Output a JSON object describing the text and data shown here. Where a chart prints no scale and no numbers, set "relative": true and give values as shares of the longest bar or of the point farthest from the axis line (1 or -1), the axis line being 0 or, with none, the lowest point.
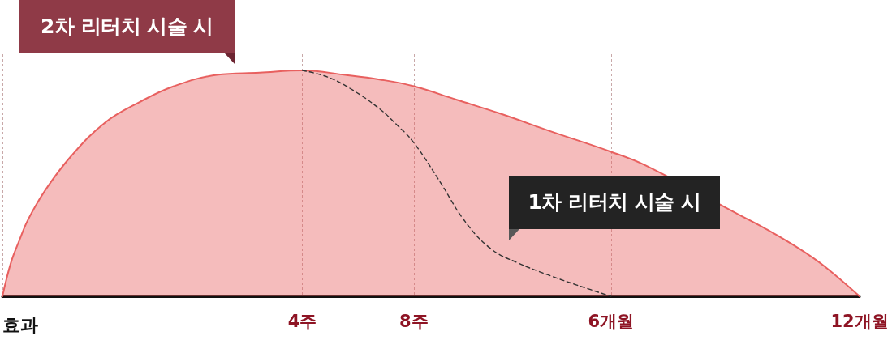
{
  "chart_data": {
    "type": "area",
    "relative": true,
    "grid": "x",
    "xlabel": "효과",
    "categories": [
      null,
      null,
      null,
      null,
      null,
      null,
      null,
      null,
      null,
      null,
      null,
      null,
      null,
      null,
      null,
      null,
      null,
      null,
      null,
      null,
      null,
      null,
      null,
      null,
      null,
      null,
      null,
      null,
      null,
      null,
      null,
      null,
      null,
      null,
      null,
      "4주",
      null,
      null,
      null,
      null,
      null,
      null,
      null,
      null,
      null,
      null,
      null,
      null,
      "8주",
      null,
      null,
      null,
      null,
      null,
      null,
      null,
      null,
      null,
      null,
      null,
      null,
      null,
      null,
      null,
      null,
      null,
      null,
      null,
      null,
      null,
      null,
      "6개월",
      null,
      null,
      null,
      null,
      null,
      null,
      null,
      null,
      null,
      null,
      null,
      null,
      null,
      null,
      null,
      null,
      null,
      null,
      null,
      null,
      null,
      null,
      null,
      null,
      null,
      null,
      null,
      null,
      "12개월"
    ],
    "series": [
      {
        "name": "2차 리터치 시술 시",
        "color": "#e8605f",
        "values": [
          0,
          0.15,
          0.25,
          0.34,
          null,
          0.47,
          null,
          null,
          0.62,
          null,
          null,
          null,
          0.77,
          null,
          null,
          null,
          0.86,
          null,
          null,
          null,
          0.93,
          null,
          null,
          null,
          null,
          0.98,
          null,
          null,
          null,
          null,
          0.99,
          null,
          null,
          null,
          null,
          1,
          null,
          null,
          null,
          null,
          0.98,
          null,
          null,
          null,
          0.96,
          null,
          null,
          null,
          0.93,
          null,
          null,
          null,
          null,
          0.87,
          null,
          null,
          null,
          null,
          0.81,
          null,
          null,
          null,
          null,
          null,
          0.73,
          null,
          null,
          null,
          null,
          null,
          null,
          0.64,
          null,
          null,
          null,
          0.58,
          null,
          null,
          null,
          null,
          null,
          null,
          null,
          null,
          null,
          null,
          0.36,
          null,
          null,
          0.3,
          null,
          null,
          null,
          0.21,
          null,
          null,
          0.13,
          null,
          null,
          null,
          0
        ]
      },
      {
        "name": "1차 리터치 시술 시",
        "type": "line",
        "line_style": "dashed",
        "color": "#333333",
        "values": [
          null,
          null,
          null,
          null,
          null,
          null,
          null,
          null,
          null,
          null,
          null,
          null,
          null,
          null,
          null,
          null,
          null,
          null,
          null,
          null,
          null,
          null,
          null,
          null,
          null,
          null,
          null,
          null,
          null,
          null,
          null,
          null,
          null,
          null,
          null,
          1,
          null,
          null,
          0.97,
          null,
          null,
          0.91,
          null,
          null,
          0.83,
          null,
          0.76,
          null,
          0.68,
          null,
          null,
          0.51,
          null,
          null,
          0.33,
          null,
          null,
          0.21,
          null,
          null,
          0.15,
          null,
          null,
          null,
          0.09,
          null,
          null,
          0.05,
          null,
          null,
          null,
          0,
          null,
          null,
          null,
          null,
          null,
          null,
          null,
          null,
          null,
          null,
          null,
          null,
          null,
          null,
          null,
          null,
          null,
          null,
          null,
          null,
          null,
          null,
          null,
          null,
          null,
          null,
          null,
          null,
          null
        ]
      }
    ]
  }
}
